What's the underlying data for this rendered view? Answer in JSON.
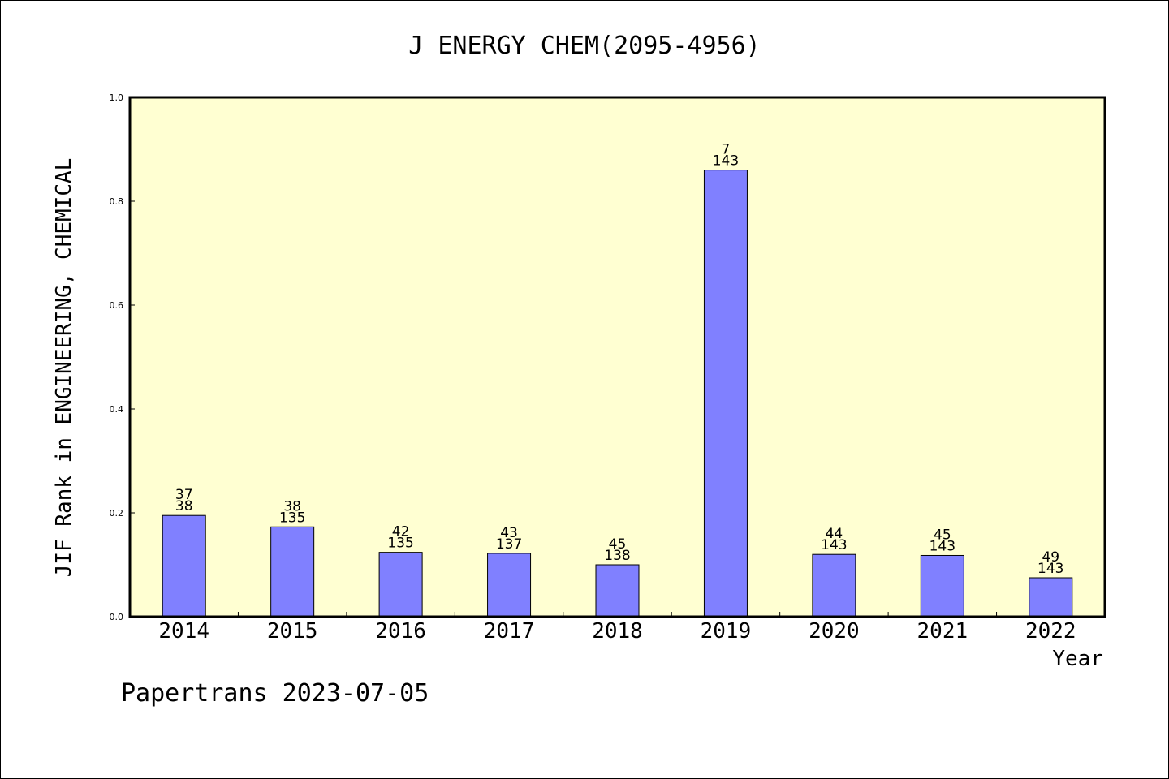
{
  "chart_data": {
    "type": "bar",
    "title": "J ENERGY CHEM(2095-4956)",
    "xlabel": "Year",
    "ylabel": "JIF Rank in ENGINEERING, CHEMICAL",
    "ylim": [
      0,
      1.0
    ],
    "yticks": [
      "0.0",
      "0.2",
      "0.4",
      "0.6",
      "0.8",
      "1.0"
    ],
    "categories": [
      "2014",
      "2015",
      "2016",
      "2017",
      "2018",
      "2019",
      "2020",
      "2021",
      "2022"
    ],
    "values": [
      0.195,
      0.173,
      0.124,
      0.122,
      0.1,
      0.86,
      0.12,
      0.118,
      0.075
    ],
    "ranks": [
      "37",
      "38",
      "42",
      "43",
      "45",
      "7",
      "44",
      "45",
      "49"
    ],
    "totals": [
      "38",
      "135",
      "135",
      "137",
      "138",
      "143",
      "143",
      "143",
      "143"
    ],
    "colors": {
      "plot_bg": "#ffffd2",
      "bar_fill": "#8080ff",
      "bar_stroke": "#000000"
    },
    "grid": false,
    "legend": "none"
  },
  "footer": {
    "text": "Papertrans 2023-07-05"
  }
}
